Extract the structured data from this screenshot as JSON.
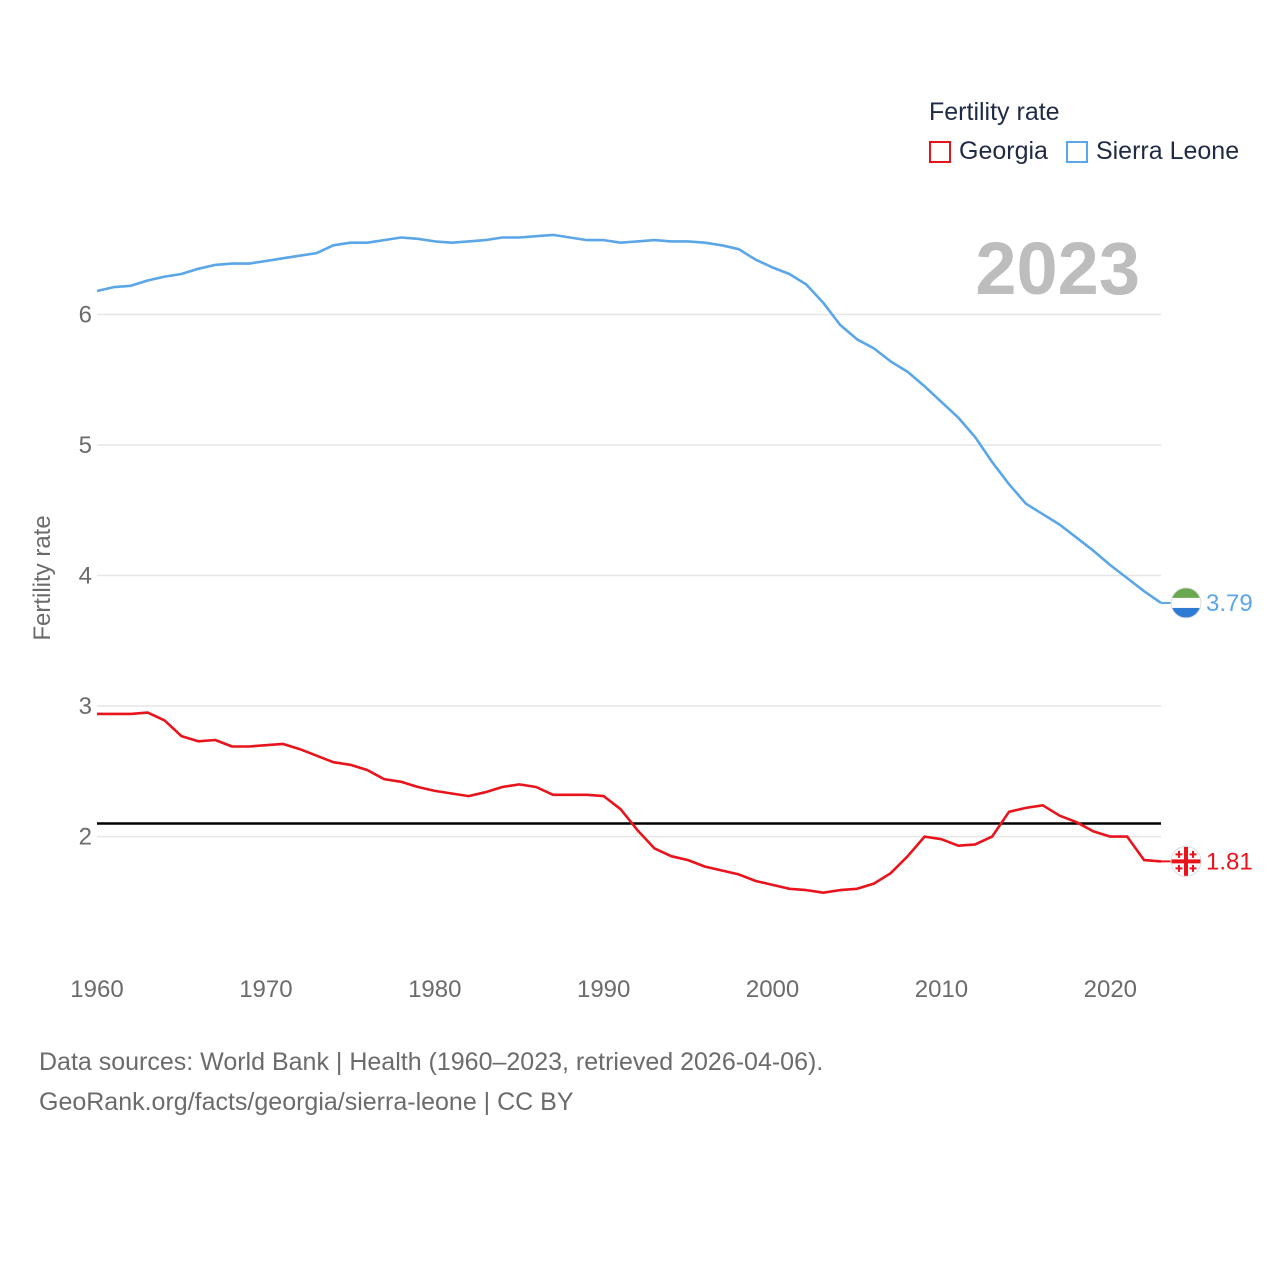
{
  "legend": {
    "title": "Fertility rate",
    "items": [
      {
        "label": "Georgia",
        "color": "#e8141c"
      },
      {
        "label": "Sierra Leone",
        "color": "#5aa6e6"
      }
    ]
  },
  "year_label": "2023",
  "sources": {
    "line1": "Data sources: World Bank | Health (1960–2023, retrieved 2026-04-06).",
    "line2": "GeoRank.org/facts/georgia/sierra-leone | CC BY"
  },
  "chart_data": {
    "type": "line",
    "title": "Fertility rate",
    "xlabel": "",
    "ylabel": "Fertility rate",
    "x": [
      1960,
      1961,
      1962,
      1963,
      1964,
      1965,
      1966,
      1967,
      1968,
      1969,
      1970,
      1971,
      1972,
      1973,
      1974,
      1975,
      1976,
      1977,
      1978,
      1979,
      1980,
      1981,
      1982,
      1983,
      1984,
      1985,
      1986,
      1987,
      1988,
      1989,
      1990,
      1991,
      1992,
      1993,
      1994,
      1995,
      1996,
      1997,
      1998,
      1999,
      2000,
      2001,
      2002,
      2003,
      2004,
      2005,
      2006,
      2007,
      2008,
      2009,
      2010,
      2011,
      2012,
      2013,
      2014,
      2015,
      2016,
      2017,
      2018,
      2019,
      2020,
      2021,
      2022,
      2023
    ],
    "xlim": [
      1960,
      2023
    ],
    "ylim": [
      1.2,
      6.9
    ],
    "xticks": [
      "1960",
      "1970",
      "1980",
      "1990",
      "2000",
      "2010",
      "2020"
    ],
    "yticks": [
      "2",
      "3",
      "4",
      "5",
      "6"
    ],
    "reference_line": 2.1,
    "grid": true,
    "series": [
      {
        "name": "Georgia",
        "color": "#e8141c",
        "end_label": "1.81",
        "values": [
          2.94,
          2.94,
          2.94,
          2.95,
          2.89,
          2.77,
          2.73,
          2.74,
          2.69,
          2.69,
          2.7,
          2.71,
          2.67,
          2.62,
          2.57,
          2.55,
          2.51,
          2.44,
          2.42,
          2.38,
          2.35,
          2.33,
          2.31,
          2.34,
          2.38,
          2.4,
          2.38,
          2.32,
          2.32,
          2.32,
          2.31,
          2.21,
          2.05,
          1.91,
          1.85,
          1.82,
          1.77,
          1.74,
          1.71,
          1.66,
          1.63,
          1.6,
          1.59,
          1.57,
          1.59,
          1.6,
          1.64,
          1.72,
          1.85,
          2.0,
          1.98,
          1.93,
          1.94,
          2.0,
          2.19,
          2.22,
          2.24,
          2.16,
          2.11,
          2.04,
          2.0,
          2.0,
          1.82,
          1.81
        ]
      },
      {
        "name": "Sierra Leone",
        "color": "#5aa6e6",
        "end_label": "3.79",
        "values": [
          6.18,
          6.21,
          6.22,
          6.26,
          6.29,
          6.31,
          6.35,
          6.38,
          6.39,
          6.39,
          6.41,
          6.43,
          6.45,
          6.47,
          6.53,
          6.55,
          6.55,
          6.57,
          6.59,
          6.58,
          6.56,
          6.55,
          6.56,
          6.57,
          6.59,
          6.59,
          6.6,
          6.61,
          6.59,
          6.57,
          6.57,
          6.55,
          6.56,
          6.57,
          6.56,
          6.56,
          6.55,
          6.53,
          6.5,
          6.42,
          6.36,
          6.31,
          6.23,
          6.09,
          5.92,
          5.81,
          5.74,
          5.64,
          5.56,
          5.45,
          5.33,
          5.21,
          5.06,
          4.87,
          4.7,
          4.55,
          4.47,
          4.39,
          4.29,
          4.19,
          4.08,
          3.98,
          3.88,
          3.79
        ]
      }
    ]
  }
}
